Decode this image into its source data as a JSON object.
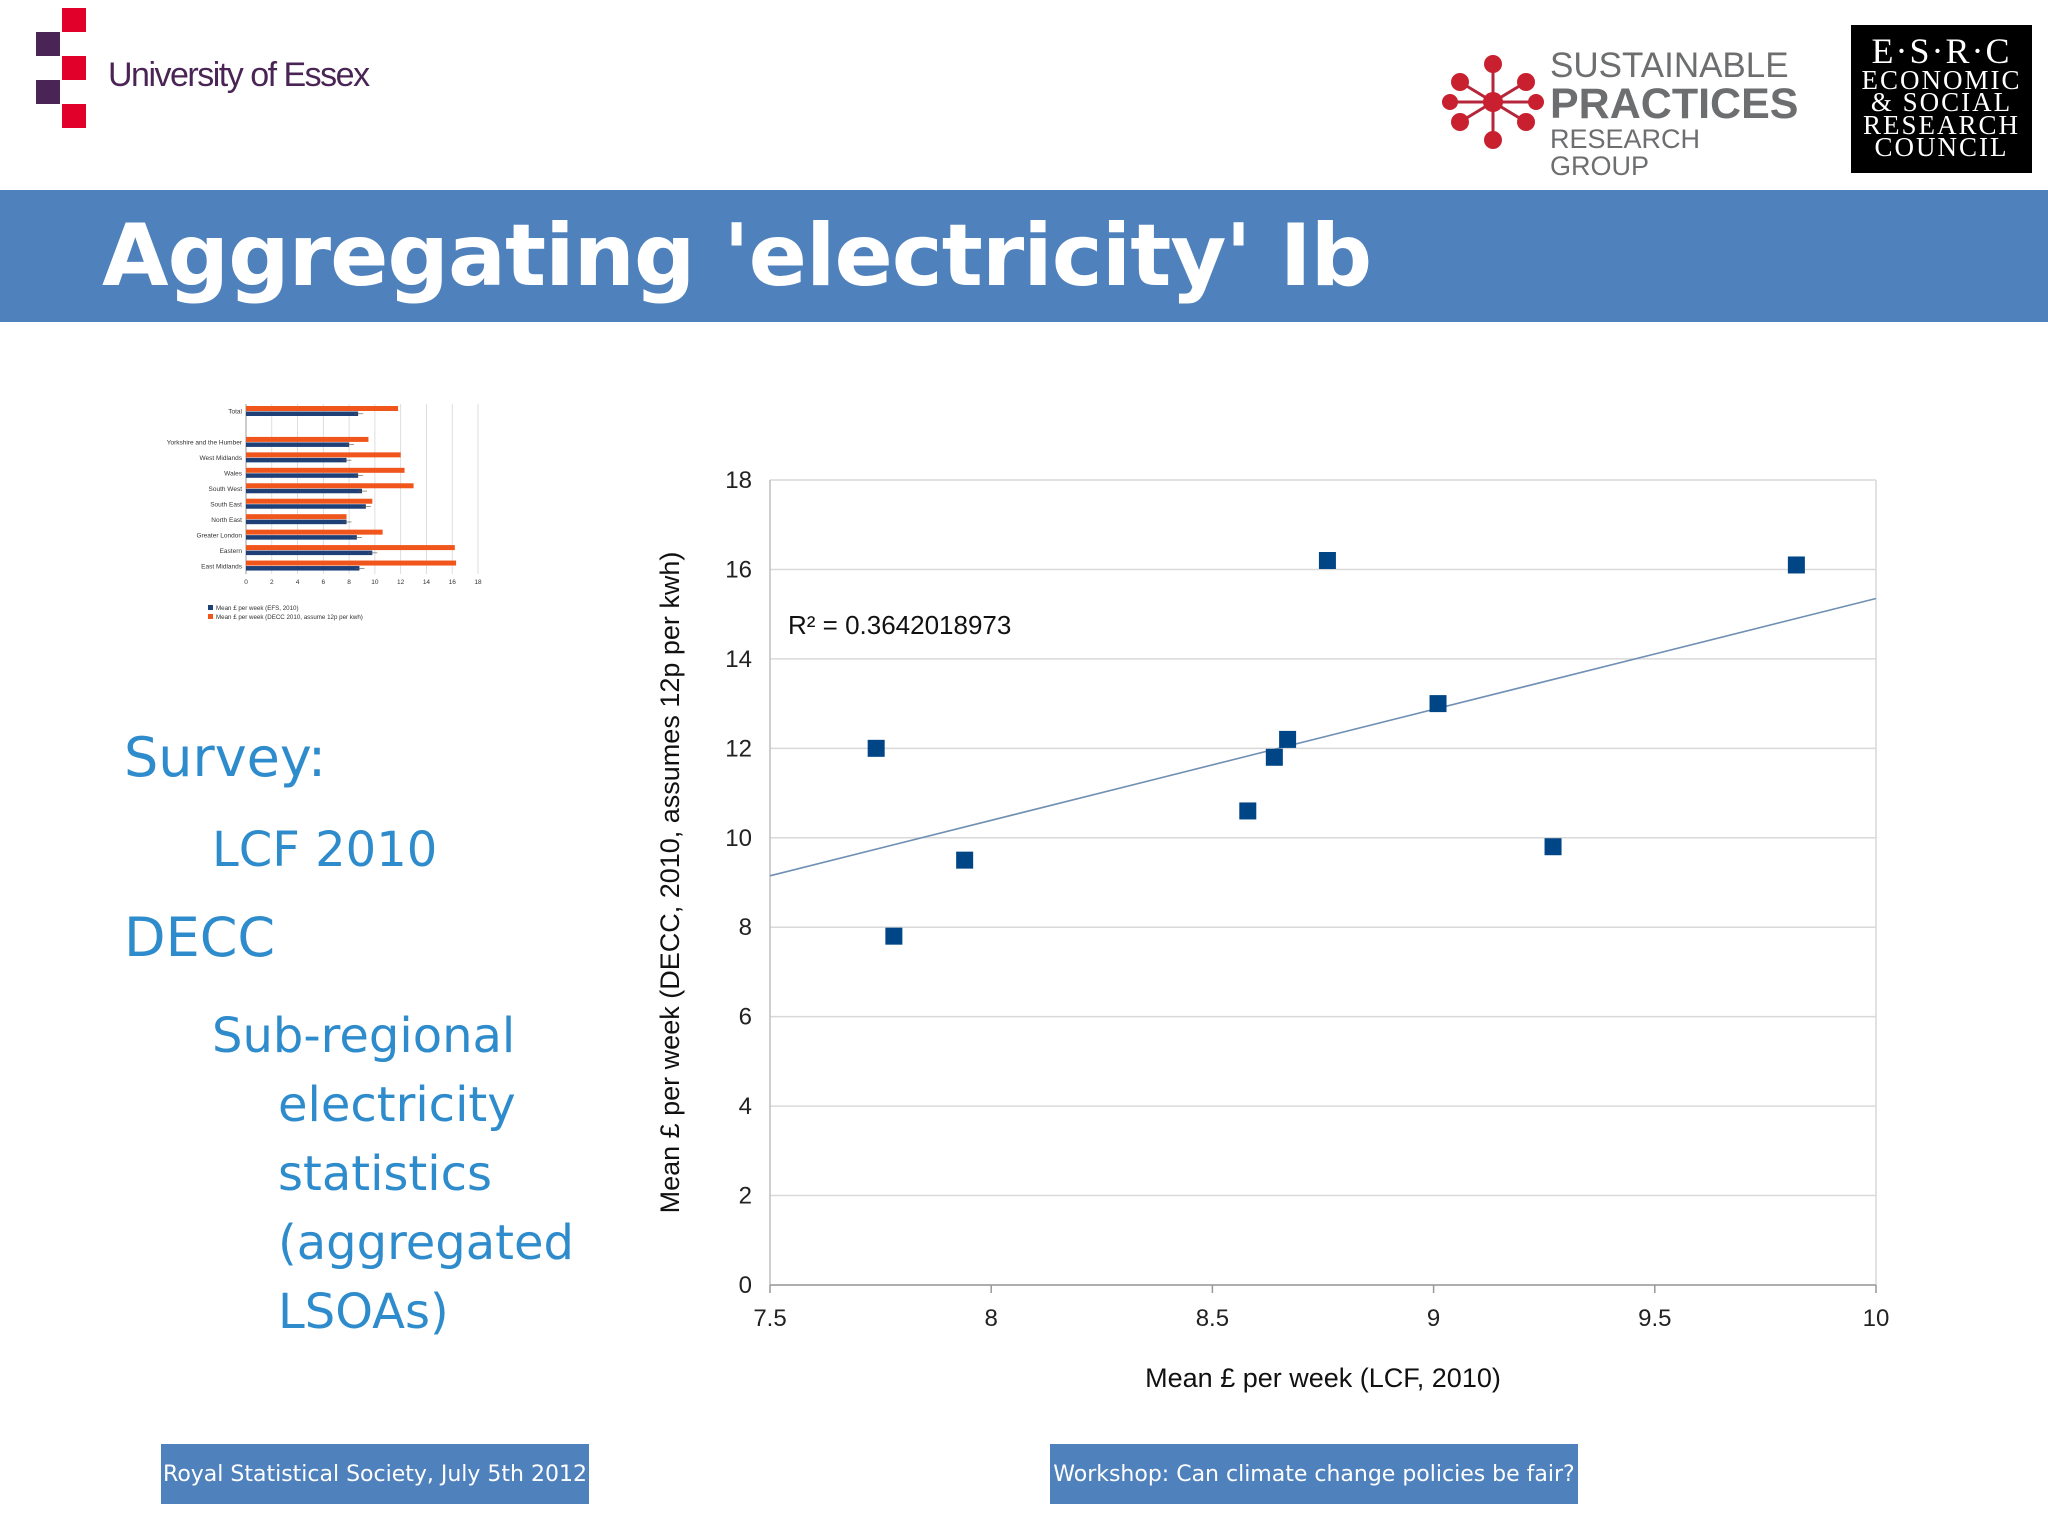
{
  "header": {
    "university_name": "University of Essex",
    "spr_line1": "SUSTAINABLE",
    "spr_line2": "PRACTICES",
    "spr_line3": "RESEARCH GROUP",
    "esrc_top": "E·S·R·C",
    "esrc_lines": [
      "ECONOMIC",
      "& SOCIAL",
      "RESEARCH",
      "COUNCIL"
    ]
  },
  "title": "Aggregating 'electricity' Ib",
  "bullets": {
    "survey": "Survey:",
    "lcf": "LCF 2010",
    "decc": "DECC",
    "subregional": [
      "Sub-regional",
      "electricity",
      "statistics",
      "(aggregated",
      "LSOAs)"
    ]
  },
  "footer": {
    "left": "Royal Statistical Society, July 5th 2012",
    "right": "Workshop: Can climate change policies be fair?"
  },
  "colors": {
    "title_bar": "#4f81bd",
    "bullet_text": "#2f8ccc",
    "scatter_marker": "#004586",
    "trend_line": "#6f8fb3",
    "thumb_blue": "#1f3f77",
    "thumb_orange": "#f0551b"
  },
  "chart_data": [
    {
      "type": "bar",
      "orientation": "horizontal",
      "categories": [
        "Total",
        "",
        "Yorkshire and the Humber",
        "West Midlands",
        "Wales",
        "South West",
        "South East",
        "North East",
        "Greater London",
        "Eastern",
        "East Midlands"
      ],
      "series": [
        {
          "name": "Mean £ per week (EFS, 2010)",
          "values": [
            8.7,
            null,
            8.0,
            7.8,
            8.7,
            9.0,
            9.3,
            7.8,
            8.6,
            9.8,
            8.8
          ]
        },
        {
          "name": "Mean £ per week (DECC 2010, assume 12p per kwh)",
          "values": [
            11.8,
            null,
            9.5,
            12.0,
            12.3,
            13.0,
            9.8,
            7.8,
            10.6,
            16.2,
            16.3
          ]
        }
      ],
      "xticks": [
        "0",
        "2",
        "4",
        "6",
        "8",
        "10",
        "12",
        "14",
        "16",
        "18"
      ],
      "xlim": [
        0,
        18
      ],
      "grid": true,
      "legend": "bottom"
    },
    {
      "type": "scatter",
      "points": [
        {
          "x": 7.74,
          "y": 12.0
        },
        {
          "x": 7.78,
          "y": 7.8
        },
        {
          "x": 7.94,
          "y": 9.5
        },
        {
          "x": 8.58,
          "y": 10.6
        },
        {
          "x": 8.64,
          "y": 11.8
        },
        {
          "x": 8.67,
          "y": 12.2
        },
        {
          "x": 8.76,
          "y": 16.2
        },
        {
          "x": 9.01,
          "y": 13.0
        },
        {
          "x": 9.27,
          "y": 9.8
        },
        {
          "x": 9.82,
          "y": 16.1
        }
      ],
      "trendline": {
        "x": [
          7.5,
          10
        ],
        "y": [
          9.15,
          15.35
        ]
      },
      "annotation": "R² = 0.3642018973",
      "xlabel": "Mean £ per week (LCF, 2010)",
      "ylabel": "Mean £ per week (DECC, 2010, assumes 12p per kwh)",
      "xlim": [
        7.5,
        10
      ],
      "ylim": [
        0,
        18
      ],
      "xticks": [
        "7.5",
        "8",
        "8.5",
        "9",
        "9.5",
        "10"
      ],
      "yticks": [
        "0",
        "2",
        "4",
        "6",
        "8",
        "10",
        "12",
        "14",
        "16",
        "18"
      ],
      "grid": true
    }
  ]
}
